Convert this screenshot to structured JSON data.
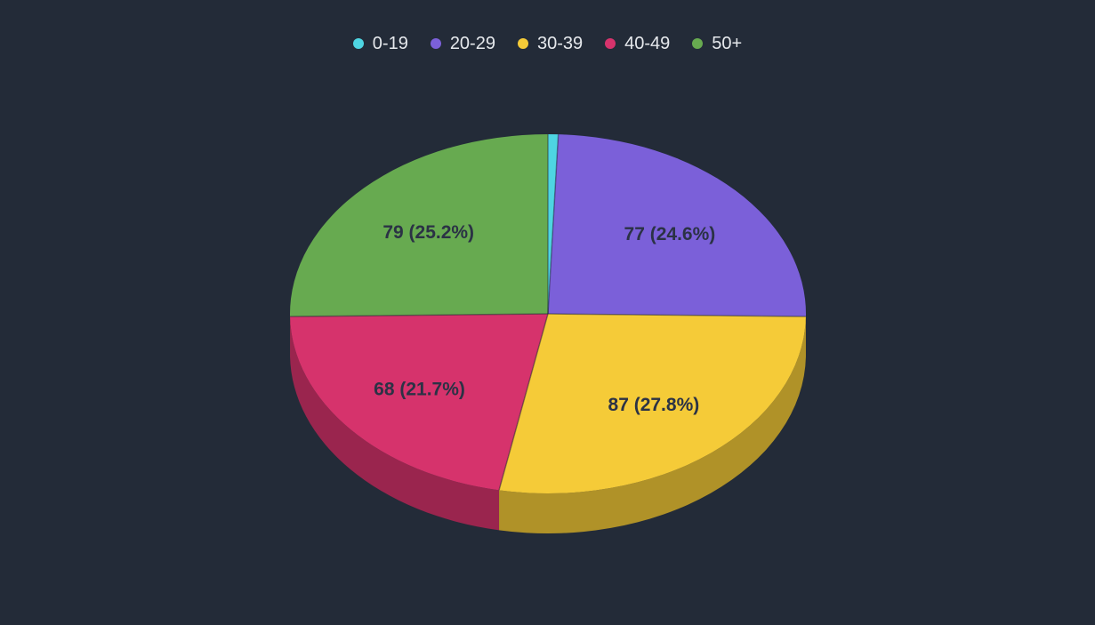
{
  "page": {
    "background_color": "#232B38"
  },
  "chart_data": {
    "type": "pie",
    "style": "3d",
    "title": "",
    "legend_position": "top",
    "direction": "clockwise",
    "start_angle_deg": 0,
    "categories": [
      "0-19",
      "20-29",
      "30-39",
      "40-49",
      "50+"
    ],
    "values": [
      2,
      77,
      87,
      68,
      79
    ],
    "slices": [
      {
        "category": "0-19",
        "value": 2,
        "pct": 0.6,
        "label": "",
        "color": "#4ED5E2"
      },
      {
        "category": "20-29",
        "value": 77,
        "pct": 24.6,
        "label": "77 (24.6%)",
        "color": "#7B60D9"
      },
      {
        "category": "30-39",
        "value": 87,
        "pct": 27.8,
        "label": "87 (27.8%)",
        "color": "#F5CB38"
      },
      {
        "category": "40-49",
        "value": 68,
        "pct": 21.7,
        "label": "68 (21.7%)",
        "color": "#D6336C"
      },
      {
        "category": "50+",
        "value": 79,
        "pct": 25.2,
        "label": "79 (25.2%)",
        "color": "#67AA50"
      }
    ],
    "slice_label_color": "#2B3245",
    "legend_text_color": "#E6E9ED"
  }
}
